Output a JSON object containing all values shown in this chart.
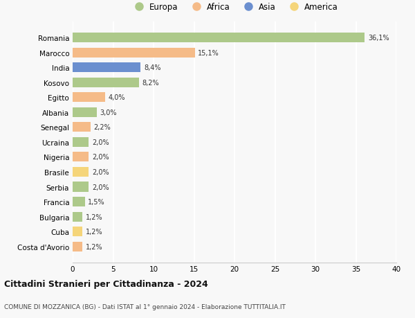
{
  "countries": [
    "Romania",
    "Marocco",
    "India",
    "Kosovo",
    "Egitto",
    "Albania",
    "Senegal",
    "Ucraina",
    "Nigeria",
    "Brasile",
    "Serbia",
    "Francia",
    "Bulgaria",
    "Cuba",
    "Costa d'Avorio"
  ],
  "values": [
    36.1,
    15.1,
    8.4,
    8.2,
    4.0,
    3.0,
    2.2,
    2.0,
    2.0,
    2.0,
    2.0,
    1.5,
    1.2,
    1.2,
    1.2
  ],
  "labels": [
    "36,1%",
    "15,1%",
    "8,4%",
    "8,2%",
    "4,0%",
    "3,0%",
    "2,2%",
    "2,0%",
    "2,0%",
    "2,0%",
    "2,0%",
    "1,5%",
    "1,2%",
    "1,2%",
    "1,2%"
  ],
  "continents": [
    "Europa",
    "Africa",
    "Asia",
    "Europa",
    "Africa",
    "Europa",
    "Africa",
    "Europa",
    "Africa",
    "America",
    "Europa",
    "Europa",
    "Europa",
    "America",
    "Africa"
  ],
  "colors": {
    "Europa": "#adc98a",
    "Africa": "#f5bb88",
    "Asia": "#6b8fcf",
    "America": "#f5d57a"
  },
  "legend_order": [
    "Europa",
    "Africa",
    "Asia",
    "America"
  ],
  "xlim": [
    0,
    40
  ],
  "xticks": [
    0,
    5,
    10,
    15,
    20,
    25,
    30,
    35,
    40
  ],
  "title": "Cittadini Stranieri per Cittadinanza - 2024",
  "subtitle": "COMUNE DI MOZZANICA (BG) - Dati ISTAT al 1° gennaio 2024 - Elaborazione TUTTITALIA.IT",
  "background_color": "#f8f8f8",
  "grid_color": "#ffffff"
}
